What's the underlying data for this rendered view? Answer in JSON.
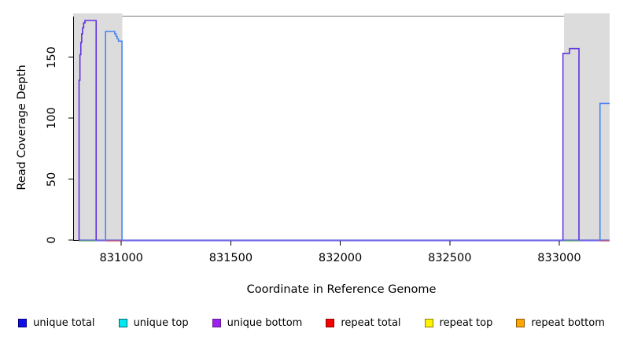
{
  "y_axis": {
    "title": "Read Coverage Depth",
    "tick_labels": [
      "0",
      "50",
      "100",
      "150"
    ]
  },
  "x_axis": {
    "title": "Coordinate in Reference Genome",
    "tick_labels": [
      "831000",
      "831500",
      "832000",
      "832500",
      "833000"
    ]
  },
  "legend": {
    "items": [
      {
        "label": "unique total",
        "fill": "#0f0fe8",
        "border": "#000080"
      },
      {
        "label": "unique top",
        "fill": "#00e8f0",
        "border": "#006b70"
      },
      {
        "label": "unique bottom",
        "fill": "#a020f0",
        "border": "#551a8b"
      },
      {
        "label": "repeat total",
        "fill": "#f50000",
        "border": "#8b0000"
      },
      {
        "label": "repeat top",
        "fill": "#fff200",
        "border": "#8b8000"
      },
      {
        "label": "repeat bottom",
        "fill": "#ffa500",
        "border": "#8b5a00"
      }
    ]
  },
  "chart_data": {
    "type": "line",
    "title": "",
    "xlabel": "Coordinate in Reference Genome",
    "ylabel": "Read Coverage Depth",
    "xlim": [
      830780,
      833230
    ],
    "ylim": [
      0,
      185
    ],
    "x_ticks": [
      831000,
      831500,
      832000,
      832500,
      833000
    ],
    "y_ticks": [
      0,
      50,
      100,
      150
    ],
    "grid": false,
    "legend_position": "bottom",
    "shaded_regions": [
      {
        "from": 830780,
        "to": 831004,
        "color": "#dcdcdc"
      },
      {
        "from": 833022,
        "to": 833230,
        "color": "#dcdcdc"
      }
    ],
    "baseline_segments": [
      {
        "color": "#9e8ef2",
        "from": 830805,
        "to": 833230
      },
      {
        "color": "#7fca7f",
        "from": 830806,
        "to": 830885
      },
      {
        "color": "#f07575",
        "from": 830928,
        "to": 831004
      },
      {
        "color": "#7fca7f",
        "from": 833017,
        "to": 833090
      },
      {
        "color": "#f07575",
        "from": 833186,
        "to": 833230
      }
    ],
    "series": [
      {
        "name": "unique total",
        "color": "#4343d6",
        "width": 1.1,
        "segments": [
          [
            [
              830805,
              0
            ],
            [
              833230,
              0
            ]
          ]
        ]
      },
      {
        "name": "unique bottom",
        "color": "#6031dd",
        "width": 1.6,
        "segments": [
          [
            [
              830805,
              0
            ],
            [
              830807,
              131
            ],
            [
              830811,
              152
            ],
            [
              830815,
              162
            ],
            [
              830819,
              169
            ],
            [
              830823,
              174
            ],
            [
              830828,
              178
            ],
            [
              830834,
              180
            ],
            [
              830884,
              180
            ],
            [
              830885,
              0
            ]
          ],
          [
            [
              833016,
              0
            ],
            [
              833017,
              153
            ],
            [
              833046,
              153
            ],
            [
              833047,
              157
            ],
            [
              833089,
              157
            ],
            [
              833090,
              0
            ]
          ]
        ]
      },
      {
        "name": "unique top",
        "color": "#4b85f2",
        "width": 1.6,
        "segments": [
          [
            [
              830927,
              0
            ],
            [
              830928,
              171
            ],
            [
              830964,
              171
            ],
            [
              830970,
              169
            ],
            [
              830976,
              167
            ],
            [
              830981,
              165
            ],
            [
              830987,
              163
            ],
            [
              831002,
              163
            ],
            [
              831003,
              0
            ]
          ],
          [
            [
              833185,
              0
            ],
            [
              833186,
              112
            ],
            [
              833230,
              112
            ]
          ]
        ]
      }
    ]
  }
}
